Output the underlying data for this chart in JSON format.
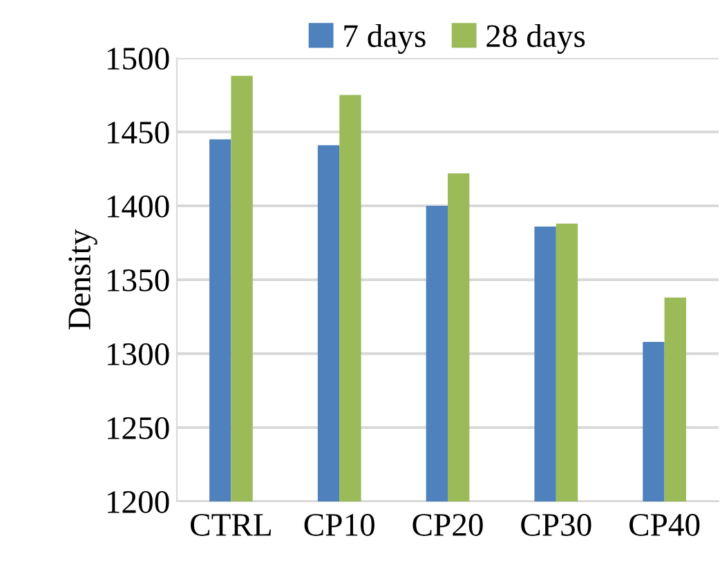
{
  "chart_data": {
    "type": "bar",
    "ylabel": "Density",
    "categories": [
      "CTRL",
      "CP10",
      "CP20",
      "CP30",
      "CP40"
    ],
    "series": [
      {
        "name": "7 days",
        "color": "#4f81bd",
        "values": [
          1445,
          1441,
          1400,
          1386,
          1308
        ]
      },
      {
        "name": "28 days",
        "color": "#9bbb59",
        "values": [
          1488,
          1475,
          1422,
          1388,
          1338
        ]
      }
    ],
    "ylim": [
      1200,
      1500
    ],
    "yticks": [
      1200,
      1250,
      1300,
      1350,
      1400,
      1450,
      1500
    ],
    "grid": "y",
    "legend": "top"
  }
}
